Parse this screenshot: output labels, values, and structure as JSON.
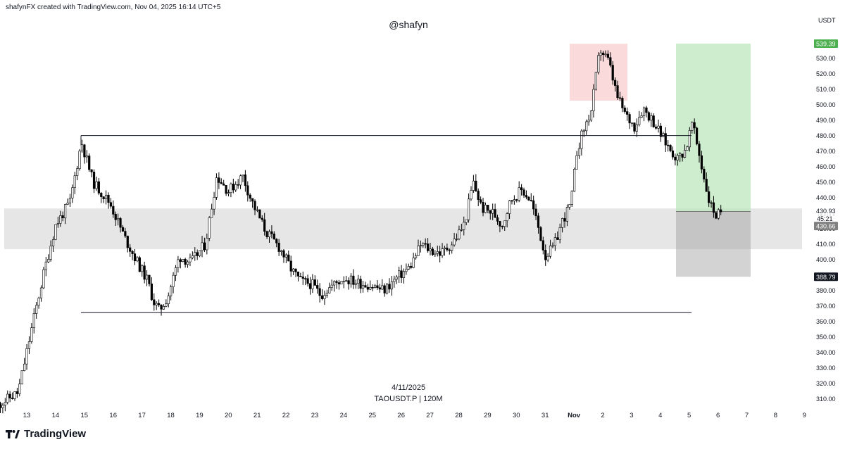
{
  "header": {
    "credit": "shafynFX created with TradingView.com, Nov 04, 2025 16:14 UTC+5"
  },
  "watermark": "@shafyn",
  "footer": {
    "date": "4/11/2025",
    "symbol": "TAOUSDT.P | 120M",
    "brand": "TradingView",
    "logo_icon": "tradingview-logo-icon"
  },
  "colors": {
    "bull": "#ffffff",
    "bear": "#000000",
    "wick": "#000000",
    "zone": "#d9d9d9",
    "stop_box": "#f7c6c7",
    "target_box": "#b9e4b9",
    "risk_box": "#9e9e9e",
    "target_tag": "#4caf50",
    "stop_tag": "#131722",
    "current_tag": "#808080"
  },
  "chart_data": {
    "type": "candlestick",
    "unit": "USDT",
    "ylim": [
      305,
      541
    ],
    "x_ticks": [
      "13",
      "14",
      "15",
      "16",
      "17",
      "18",
      "19",
      "20",
      "21",
      "22",
      "23",
      "24",
      "25",
      "26",
      "27",
      "28",
      "29",
      "30",
      "31",
      "Nov",
      "2",
      "3",
      "4",
      "5",
      "6",
      "7",
      "8",
      "9"
    ],
    "y_ticks": [
      310,
      320,
      330,
      340,
      350,
      360,
      370,
      380,
      390,
      400,
      410,
      420,
      430,
      440,
      450,
      460,
      470,
      480,
      490,
      500,
      510,
      520,
      530,
      540
    ],
    "y_tick_labels": [
      "310.00",
      "320.00",
      "330.00",
      "340.00",
      "350.00",
      "360.00",
      "370.00",
      "380.00",
      "390.00",
      "400.00",
      "410.00",
      "420.00",
      "430.00",
      "440.00",
      "450.00",
      "460.00",
      "470.00",
      "480.00",
      "490.00",
      "500.00",
      "510.00",
      "520.00",
      "530.00",
      "540.00"
    ],
    "levels": {
      "resistance": 480,
      "support": 365.6
    },
    "zone": {
      "top": 432.9,
      "bottom": 406.6
    },
    "position": {
      "entry": 430.93,
      "stop": 388.79,
      "target": 539.39,
      "countdown": "45:21",
      "last": "430.66"
    },
    "stop_box": {
      "top": 539.3,
      "bottom": 502.5
    },
    "price_tags": [
      {
        "label": "539.39",
        "value": 539.39,
        "kind": "target"
      },
      {
        "label": "430.93",
        "value": 430.93,
        "kind": "entry"
      },
      {
        "label": "430.66",
        "value": 430.66,
        "kind": "last"
      },
      {
        "label": "388.79",
        "value": 388.79,
        "kind": "stop"
      }
    ],
    "anchors": [
      [
        12.0,
        306
      ],
      [
        12.7,
        314
      ],
      [
        13.2,
        358
      ],
      [
        13.6,
        392
      ],
      [
        14.0,
        422
      ],
      [
        14.5,
        437
      ],
      [
        14.9,
        476
      ],
      [
        15.3,
        450
      ],
      [
        15.9,
        436
      ],
      [
        16.4,
        414
      ],
      [
        16.9,
        396
      ],
      [
        17.2,
        386
      ],
      [
        17.4,
        373
      ],
      [
        17.6,
        367
      ],
      [
        17.9,
        376
      ],
      [
        18.3,
        402
      ],
      [
        18.7,
        398
      ],
      [
        19.2,
        410
      ],
      [
        19.6,
        454
      ],
      [
        20.0,
        444
      ],
      [
        20.5,
        454
      ],
      [
        20.8,
        438
      ],
      [
        21.3,
        418
      ],
      [
        21.8,
        407
      ],
      [
        22.2,
        393
      ],
      [
        22.5,
        386
      ],
      [
        22.9,
        384
      ],
      [
        23.2,
        377
      ],
      [
        23.6,
        383
      ],
      [
        24.0,
        388
      ],
      [
        24.5,
        385
      ],
      [
        25.0,
        383
      ],
      [
        25.4,
        380
      ],
      [
        25.9,
        389
      ],
      [
        26.3,
        395
      ],
      [
        26.7,
        410
      ],
      [
        27.0,
        406
      ],
      [
        27.4,
        404
      ],
      [
        27.8,
        411
      ],
      [
        28.2,
        423
      ],
      [
        28.5,
        450
      ],
      [
        28.8,
        433
      ],
      [
        29.2,
        430
      ],
      [
        29.5,
        422
      ],
      [
        29.8,
        438
      ],
      [
        30.2,
        445
      ],
      [
        30.5,
        438
      ],
      [
        30.8,
        418
      ],
      [
        31.0,
        402
      ],
      [
        31.3,
        408
      ],
      [
        31.6,
        425
      ],
      [
        31.9,
        436
      ],
      [
        32.1,
        470
      ],
      [
        32.3,
        482
      ],
      [
        32.6,
        496
      ],
      [
        32.9,
        536
      ],
      [
        33.2,
        528
      ],
      [
        33.5,
        505
      ],
      [
        33.8,
        493
      ],
      [
        34.1,
        486
      ],
      [
        34.4,
        498
      ],
      [
        34.8,
        488
      ],
      [
        35.0,
        481
      ],
      [
        35.3,
        472
      ],
      [
        35.6,
        465
      ],
      [
        35.9,
        472
      ],
      [
        36.1,
        488
      ],
      [
        36.3,
        472
      ],
      [
        36.5,
        454
      ],
      [
        36.7,
        437
      ],
      [
        36.95,
        428
      ],
      [
        37.1,
        430.66
      ]
    ]
  }
}
